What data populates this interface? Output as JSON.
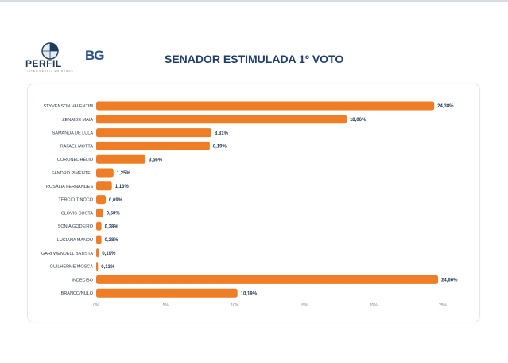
{
  "brand": {
    "perfil_word": "PERFIL",
    "perfil_tagline": "INTELIGÊNCIA EM DADOS",
    "bg_word": "BG",
    "primary_color": "#1f3e6b",
    "bar_color": "#ef7d26"
  },
  "chart_data": {
    "type": "bar",
    "orientation": "horizontal",
    "title": "SENADOR ESTIMULADA 1º VOTO",
    "categories": [
      "STYVENSON VALENTIM",
      "ZENAIDE MAIA",
      "SAMANDA DE LULA",
      "RAFAEL MOTTA",
      "CORONEL HÉLIO",
      "SANDRO PIMENTEL",
      "ROSÁLIA FERNANDES",
      "TÉRCIO TINÔCO",
      "CLÓVIS COSTA",
      "SÔNIA GODEIRO",
      "LUCIANA MANDU",
      "GARI WENDELL BATISTA",
      "GUILHERME MOSCA",
      "INDECISO",
      "BRANCO/NULO"
    ],
    "values": [
      24.38,
      18.06,
      8.31,
      8.19,
      3.56,
      1.25,
      1.13,
      0.69,
      0.5,
      0.38,
      0.38,
      0.19,
      0.13,
      24.66,
      10.19
    ],
    "value_labels": [
      "24,38%",
      "18,06%",
      "8,31%",
      "8,19%",
      "3,56%",
      "1,25%",
      "1,13%",
      "0,69%",
      "0,50%",
      "0,38%",
      "0,38%",
      "0,19%",
      "0,13%",
      "24,66%",
      "10,19%"
    ],
    "xlim": [
      0,
      25
    ],
    "xticks": [
      0,
      5,
      10,
      15,
      20,
      25
    ],
    "xtick_labels": [
      "0%",
      "5%",
      "10%",
      "15%",
      "20%",
      "25%"
    ],
    "grid": false,
    "legend": "none"
  }
}
